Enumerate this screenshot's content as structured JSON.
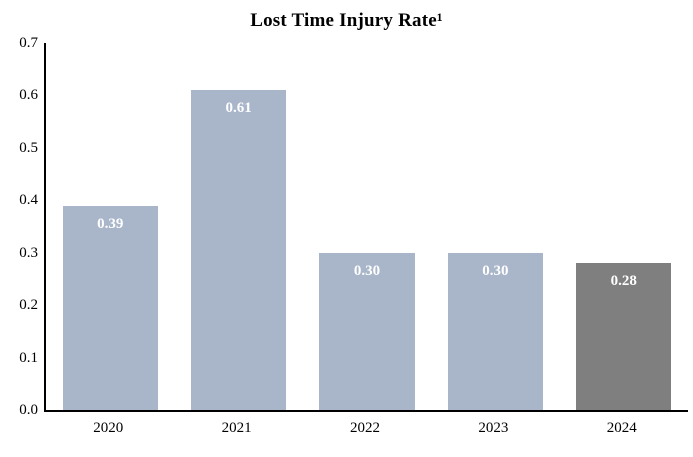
{
  "chart_data": {
    "type": "bar",
    "title": "Lost Time Injury Rate¹",
    "categories": [
      "2020",
      "2021",
      "2022",
      "2023",
      "2024"
    ],
    "values": [
      0.39,
      0.61,
      0.3,
      0.3,
      0.28
    ],
    "value_labels": [
      "0.39",
      "0.61",
      "0.30",
      "0.30",
      "0.28"
    ],
    "bar_colors": [
      "#a9b6ca",
      "#a9b6ca",
      "#a9b6ca",
      "#a9b6ca",
      "#7f7f7f"
    ],
    "value_label_color": "#ffffff",
    "axis_color": "#000000",
    "background_color": "#ffffff",
    "ylim": [
      0.0,
      0.7
    ],
    "yticks": [
      "0.0",
      "0.1",
      "0.2",
      "0.3",
      "0.4",
      "0.5",
      "0.6",
      "0.7"
    ],
    "xlabel": "",
    "ylabel": "",
    "grid": false,
    "legend": "none"
  }
}
